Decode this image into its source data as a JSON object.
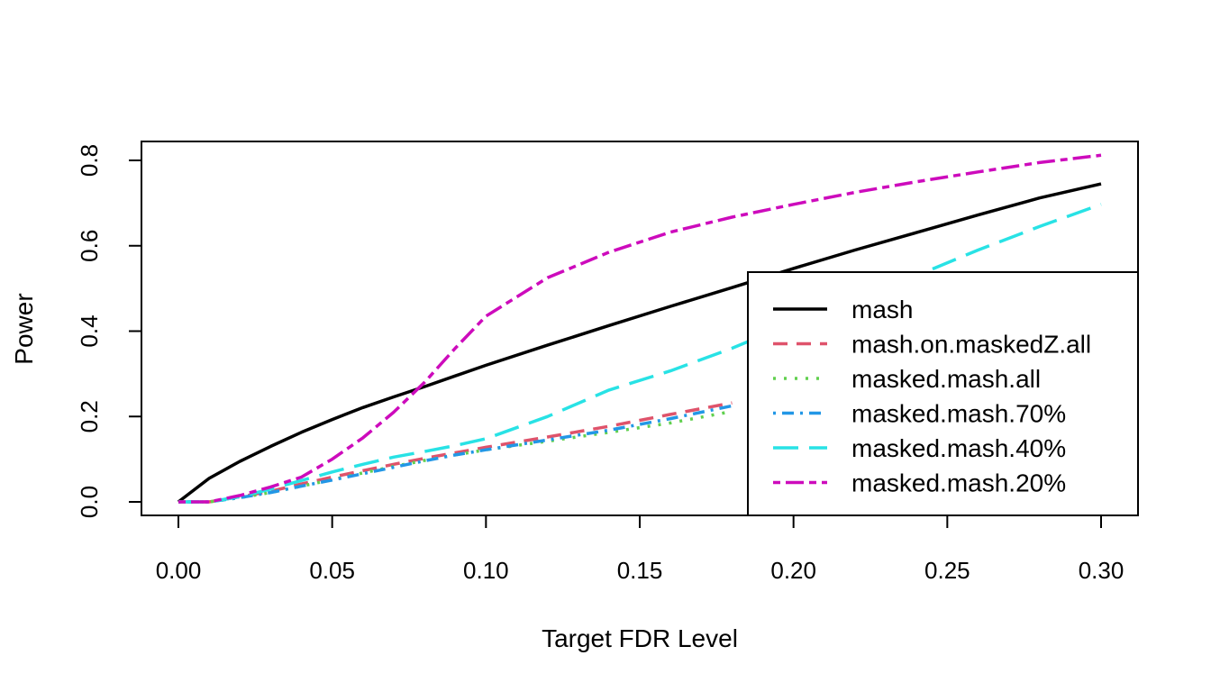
{
  "chart_data": {
    "type": "line",
    "xlabel": "Target FDR Level",
    "ylabel": "Power",
    "xlim": [
      0.0,
      0.3
    ],
    "ylim": [
      0.0,
      0.8
    ],
    "x_ticks": [
      0.0,
      0.05,
      0.1,
      0.15,
      0.2,
      0.25,
      0.3
    ],
    "x_tick_labels": [
      "0.00",
      "0.05",
      "0.10",
      "0.15",
      "0.20",
      "0.25",
      "0.30"
    ],
    "y_ticks": [
      0.0,
      0.2,
      0.4,
      0.6,
      0.8
    ],
    "y_tick_labels": [
      "0.0",
      "0.2",
      "0.4",
      "0.6",
      "0.8"
    ],
    "grid": false,
    "legend_position": "right",
    "series": [
      {
        "name": "mash",
        "color": "#000000",
        "dash": "solid",
        "x": [
          0.0,
          0.01,
          0.02,
          0.03,
          0.04,
          0.05,
          0.06,
          0.07,
          0.08,
          0.09,
          0.1,
          0.12,
          0.14,
          0.16,
          0.18,
          0.2,
          0.22,
          0.24,
          0.26,
          0.28,
          0.3
        ],
        "y": [
          0.0,
          0.055,
          0.095,
          0.13,
          0.163,
          0.193,
          0.221,
          0.246,
          0.27,
          0.295,
          0.32,
          0.367,
          0.413,
          0.458,
          0.502,
          0.547,
          0.59,
          0.631,
          0.672,
          0.712,
          0.745
        ]
      },
      {
        "name": "mash.on.maskedZ.all",
        "color": "#DF536B",
        "dash": "dashed",
        "x": [
          0.0,
          0.01,
          0.02,
          0.03,
          0.04,
          0.05,
          0.06,
          0.07,
          0.08,
          0.09,
          0.1,
          0.12,
          0.14,
          0.16,
          0.18
        ],
        "y": [
          0.0,
          0.0,
          0.012,
          0.025,
          0.042,
          0.058,
          0.073,
          0.088,
          0.102,
          0.115,
          0.128,
          0.152,
          0.177,
          0.205,
          0.232
        ]
      },
      {
        "name": "masked.mash.all",
        "color": "#61D04F",
        "dash": "dotted",
        "x": [
          0.0,
          0.01,
          0.02,
          0.03,
          0.04,
          0.05,
          0.06,
          0.07,
          0.08,
          0.09,
          0.1,
          0.12,
          0.14,
          0.16,
          0.18
        ],
        "y": [
          0.0,
          0.0,
          0.01,
          0.022,
          0.037,
          0.052,
          0.068,
          0.083,
          0.097,
          0.11,
          0.122,
          0.142,
          0.163,
          0.185,
          0.212
        ]
      },
      {
        "name": "masked.mash.70%",
        "color": "#2297E6",
        "dash": "dotdash",
        "x": [
          0.0,
          0.01,
          0.02,
          0.03,
          0.04,
          0.05,
          0.06,
          0.07,
          0.08,
          0.09,
          0.1,
          0.12,
          0.14,
          0.16,
          0.18
        ],
        "y": [
          0.0,
          0.0,
          0.01,
          0.022,
          0.037,
          0.051,
          0.066,
          0.081,
          0.096,
          0.11,
          0.122,
          0.145,
          0.168,
          0.195,
          0.225
        ]
      },
      {
        "name": "masked.mash.40%",
        "color": "#28E2E5",
        "dash": "longdash",
        "x": [
          0.0,
          0.01,
          0.02,
          0.03,
          0.04,
          0.05,
          0.06,
          0.07,
          0.08,
          0.09,
          0.1,
          0.12,
          0.14,
          0.16,
          0.18,
          0.2,
          0.22,
          0.24,
          0.26,
          0.28,
          0.3
        ],
        "y": [
          0.0,
          0.0,
          0.012,
          0.03,
          0.05,
          0.07,
          0.088,
          0.105,
          0.118,
          0.132,
          0.148,
          0.2,
          0.262,
          0.307,
          0.36,
          0.42,
          0.48,
          0.53,
          0.59,
          0.645,
          0.697
        ]
      },
      {
        "name": "masked.mash.20%",
        "color": "#CD0BBC",
        "dash": "twodash",
        "x": [
          0.0,
          0.01,
          0.02,
          0.03,
          0.04,
          0.05,
          0.06,
          0.07,
          0.08,
          0.09,
          0.1,
          0.12,
          0.14,
          0.16,
          0.18,
          0.2,
          0.22,
          0.24,
          0.26,
          0.28,
          0.3
        ],
        "y": [
          0.0,
          0.0,
          0.015,
          0.035,
          0.058,
          0.1,
          0.15,
          0.21,
          0.28,
          0.36,
          0.435,
          0.525,
          0.585,
          0.632,
          0.667,
          0.697,
          0.725,
          0.75,
          0.773,
          0.795,
          0.812
        ]
      }
    ]
  }
}
